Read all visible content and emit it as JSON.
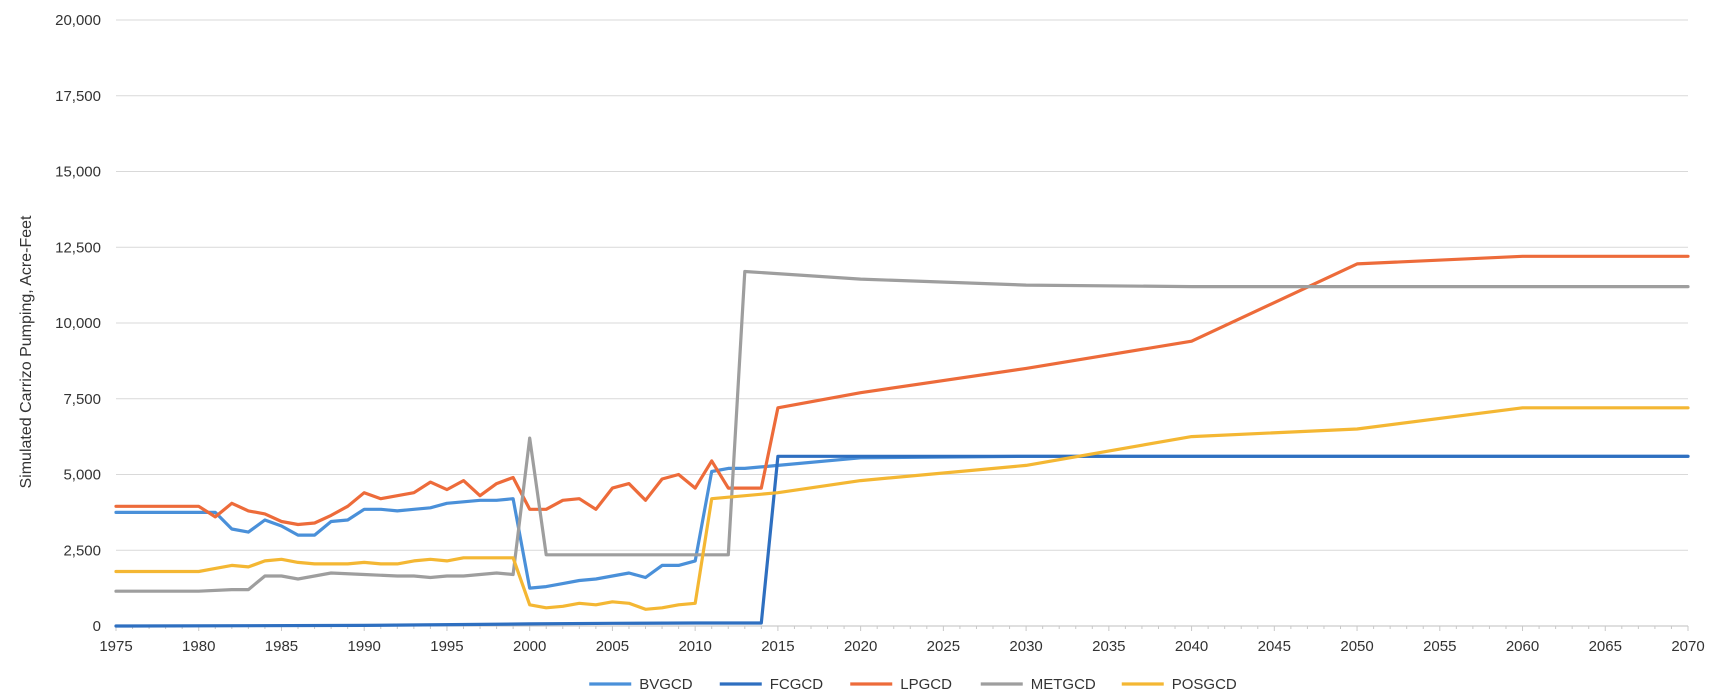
{
  "chart_data": {
    "type": "line",
    "ylabel": "Simulated Carrizo Pumping, Acre-Feet",
    "xlabel": "",
    "xlim": [
      1975,
      2070
    ],
    "ylim": [
      0,
      20000
    ],
    "y_ticks": [
      0,
      2500,
      5000,
      7500,
      10000,
      12500,
      15000,
      17500,
      20000
    ],
    "y_tick_labels": [
      "0",
      "2,500",
      "5,000",
      "7,500",
      "10,000",
      "12,500",
      "15,000",
      "17,500",
      "20,000"
    ],
    "x_ticks": [
      1975,
      1980,
      1985,
      1990,
      1995,
      2000,
      2005,
      2010,
      2015,
      2020,
      2025,
      2030,
      2035,
      2040,
      2045,
      2050,
      2055,
      2060,
      2065,
      2070
    ],
    "x_tick_labels": [
      "1975",
      "1980",
      "1985",
      "1990",
      "1995",
      "2000",
      "2005",
      "2010",
      "2015",
      "2020",
      "2025",
      "2030",
      "2035",
      "2040",
      "2045",
      "2050",
      "2055",
      "2060",
      "2065",
      "2070"
    ],
    "grid": true,
    "legend": "bottom",
    "series": [
      {
        "name": "BVGCD",
        "color": "#4a90d9",
        "points": [
          [
            1975,
            3750
          ],
          [
            1980,
            3750
          ],
          [
            1981,
            3750
          ],
          [
            1982,
            3200
          ],
          [
            1983,
            3100
          ],
          [
            1984,
            3500
          ],
          [
            1985,
            3300
          ],
          [
            1986,
            3000
          ],
          [
            1987,
            3000
          ],
          [
            1988,
            3450
          ],
          [
            1989,
            3500
          ],
          [
            1990,
            3850
          ],
          [
            1991,
            3850
          ],
          [
            1992,
            3800
          ],
          [
            1993,
            3850
          ],
          [
            1994,
            3900
          ],
          [
            1995,
            4050
          ],
          [
            1996,
            4100
          ],
          [
            1997,
            4150
          ],
          [
            1998,
            4150
          ],
          [
            1999,
            4200
          ],
          [
            2000,
            1250
          ],
          [
            2001,
            1300
          ],
          [
            2002,
            1400
          ],
          [
            2003,
            1500
          ],
          [
            2004,
            1550
          ],
          [
            2005,
            1650
          ],
          [
            2006,
            1750
          ],
          [
            2007,
            1600
          ],
          [
            2008,
            2000
          ],
          [
            2009,
            2000
          ],
          [
            2010,
            2150
          ],
          [
            2011,
            5100
          ],
          [
            2012,
            5200
          ],
          [
            2013,
            5200
          ],
          [
            2014,
            5250
          ],
          [
            2015,
            5300
          ],
          [
            2020,
            5550
          ],
          [
            2030,
            5600
          ],
          [
            2040,
            5600
          ],
          [
            2050,
            5600
          ],
          [
            2060,
            5600
          ],
          [
            2070,
            5600
          ]
        ]
      },
      {
        "name": "FCGCD",
        "color": "#2e6fc0",
        "points": [
          [
            1975,
            0
          ],
          [
            1990,
            20
          ],
          [
            2000,
            70
          ],
          [
            2005,
            90
          ],
          [
            2010,
            100
          ],
          [
            2014,
            100
          ],
          [
            2015,
            5600
          ],
          [
            2020,
            5600
          ],
          [
            2030,
            5600
          ],
          [
            2040,
            5600
          ],
          [
            2050,
            5600
          ],
          [
            2060,
            5600
          ],
          [
            2070,
            5600
          ]
        ]
      },
      {
        "name": "LPGCD",
        "color": "#ed6b3a",
        "points": [
          [
            1975,
            3950
          ],
          [
            1980,
            3950
          ],
          [
            1981,
            3600
          ],
          [
            1982,
            4050
          ],
          [
            1983,
            3800
          ],
          [
            1984,
            3700
          ],
          [
            1985,
            3450
          ],
          [
            1986,
            3350
          ],
          [
            1987,
            3400
          ],
          [
            1988,
            3650
          ],
          [
            1989,
            3950
          ],
          [
            1990,
            4400
          ],
          [
            1991,
            4200
          ],
          [
            1992,
            4300
          ],
          [
            1993,
            4400
          ],
          [
            1994,
            4750
          ],
          [
            1995,
            4500
          ],
          [
            1996,
            4800
          ],
          [
            1997,
            4300
          ],
          [
            1998,
            4700
          ],
          [
            1999,
            4900
          ],
          [
            2000,
            3850
          ],
          [
            2001,
            3850
          ],
          [
            2002,
            4150
          ],
          [
            2003,
            4200
          ],
          [
            2004,
            3850
          ],
          [
            2005,
            4550
          ],
          [
            2006,
            4700
          ],
          [
            2007,
            4150
          ],
          [
            2008,
            4850
          ],
          [
            2009,
            5000
          ],
          [
            2010,
            4550
          ],
          [
            2011,
            5450
          ],
          [
            2012,
            4550
          ],
          [
            2013,
            4550
          ],
          [
            2014,
            4550
          ],
          [
            2015,
            7200
          ],
          [
            2020,
            7700
          ],
          [
            2030,
            8500
          ],
          [
            2040,
            9400
          ],
          [
            2050,
            11950
          ],
          [
            2060,
            12200
          ],
          [
            2070,
            12200
          ]
        ]
      },
      {
        "name": "METGCD",
        "color": "#9e9e9e",
        "points": [
          [
            1975,
            1150
          ],
          [
            1980,
            1150
          ],
          [
            1982,
            1200
          ],
          [
            1983,
            1200
          ],
          [
            1984,
            1650
          ],
          [
            1985,
            1650
          ],
          [
            1986,
            1550
          ],
          [
            1987,
            1650
          ],
          [
            1988,
            1750
          ],
          [
            1990,
            1700
          ],
          [
            1992,
            1650
          ],
          [
            1993,
            1650
          ],
          [
            1994,
            1600
          ],
          [
            1995,
            1650
          ],
          [
            1996,
            1650
          ],
          [
            1997,
            1700
          ],
          [
            1998,
            1750
          ],
          [
            1999,
            1700
          ],
          [
            2000,
            6200
          ],
          [
            2001,
            2350
          ],
          [
            2005,
            2350
          ],
          [
            2010,
            2350
          ],
          [
            2012,
            2350
          ],
          [
            2013,
            11700
          ],
          [
            2020,
            11450
          ],
          [
            2030,
            11250
          ],
          [
            2040,
            11200
          ],
          [
            2050,
            11200
          ],
          [
            2060,
            11200
          ],
          [
            2070,
            11200
          ]
        ]
      },
      {
        "name": "POSGCD",
        "color": "#f4b733",
        "points": [
          [
            1975,
            1800
          ],
          [
            1980,
            1800
          ],
          [
            1981,
            1900
          ],
          [
            1982,
            2000
          ],
          [
            1983,
            1950
          ],
          [
            1984,
            2150
          ],
          [
            1985,
            2200
          ],
          [
            1986,
            2100
          ],
          [
            1987,
            2050
          ],
          [
            1988,
            2050
          ],
          [
            1989,
            2050
          ],
          [
            1990,
            2100
          ],
          [
            1991,
            2050
          ],
          [
            1992,
            2050
          ],
          [
            1993,
            2150
          ],
          [
            1994,
            2200
          ],
          [
            1995,
            2150
          ],
          [
            1996,
            2250
          ],
          [
            1997,
            2250
          ],
          [
            1998,
            2250
          ],
          [
            1999,
            2250
          ],
          [
            2000,
            700
          ],
          [
            2001,
            600
          ],
          [
            2002,
            650
          ],
          [
            2003,
            750
          ],
          [
            2004,
            700
          ],
          [
            2005,
            800
          ],
          [
            2006,
            750
          ],
          [
            2007,
            550
          ],
          [
            2008,
            600
          ],
          [
            2009,
            700
          ],
          [
            2010,
            750
          ],
          [
            2011,
            4200
          ],
          [
            2015,
            4400
          ],
          [
            2020,
            4800
          ],
          [
            2030,
            5300
          ],
          [
            2040,
            6250
          ],
          [
            2050,
            6500
          ],
          [
            2060,
            7200
          ],
          [
            2070,
            7200
          ]
        ]
      }
    ]
  }
}
